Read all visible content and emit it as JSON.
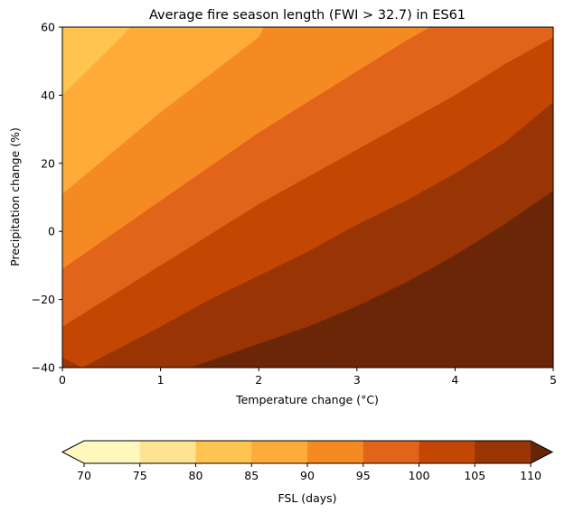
{
  "chart_data": {
    "type": "contourf",
    "title": "Average fire season length (FWI > 32.7) in ES61",
    "xlabel": "Temperature change (°C)",
    "ylabel": "Precipitation change (%)",
    "xlim": [
      0,
      5
    ],
    "ylim": [
      -40,
      60
    ],
    "xticks": [
      0,
      1,
      2,
      3,
      4,
      5
    ],
    "yticks": [
      -40,
      -20,
      0,
      20,
      40,
      60
    ],
    "xtick_labels": [
      "0",
      "1",
      "2",
      "3",
      "4",
      "5"
    ],
    "ytick_labels": [
      "−40",
      "−20",
      "0",
      "20",
      "40",
      "60"
    ],
    "levels": [
      70,
      75,
      80,
      85,
      90,
      95,
      100,
      105,
      110
    ],
    "colorbar": {
      "label": "FSL (days)",
      "tick_labels": [
        "70",
        "75",
        "80",
        "85",
        "90",
        "95",
        "100",
        "105",
        "110"
      ],
      "extend": "both",
      "colors": [
        "#fff7bc",
        "#fee391",
        "#fec44f",
        "#feab3a",
        "#f68a22",
        "#e2641a",
        "#c34603",
        "#993404",
        "#6b2608",
        "#662506"
      ]
    },
    "contour_lines": [
      {
        "level": 80,
        "points": [
          [
            0,
            40
          ],
          [
            0.7,
            60
          ]
        ]
      },
      {
        "level": 85,
        "points": [
          [
            0,
            11
          ],
          [
            0.5,
            23
          ],
          [
            1,
            35
          ],
          [
            1.5,
            46
          ],
          [
            2,
            57
          ],
          [
            2.05,
            60
          ]
        ]
      },
      {
        "level": 90,
        "points": [
          [
            0,
            -11
          ],
          [
            0.5,
            -1
          ],
          [
            1,
            9
          ],
          [
            1.5,
            19
          ],
          [
            2,
            29
          ],
          [
            2.5,
            38
          ],
          [
            3,
            47
          ],
          [
            3.5,
            56
          ],
          [
            3.75,
            60
          ]
        ]
      },
      {
        "level": 95,
        "points": [
          [
            0,
            -28
          ],
          [
            0.5,
            -19
          ],
          [
            1,
            -10
          ],
          [
            1.5,
            -1
          ],
          [
            2,
            8
          ],
          [
            2.5,
            16
          ],
          [
            3,
            24
          ],
          [
            3.5,
            32
          ],
          [
            4,
            40
          ],
          [
            4.5,
            49
          ],
          [
            5,
            57
          ]
        ]
      },
      {
        "level": 100,
        "points": [
          [
            0,
            -37
          ],
          [
            0.2,
            -40
          ],
          [
            1,
            -28
          ],
          [
            1.5,
            -20
          ],
          [
            2,
            -13
          ],
          [
            2.5,
            -6
          ],
          [
            3,
            2
          ],
          [
            3.5,
            9
          ],
          [
            4,
            17
          ],
          [
            4.5,
            26
          ],
          [
            5,
            38
          ]
        ]
      },
      {
        "level": 105,
        "points": [
          [
            1.3,
            -40
          ],
          [
            2,
            -33
          ],
          [
            2.5,
            -28
          ],
          [
            3,
            -22
          ],
          [
            3.5,
            -15
          ],
          [
            4,
            -7
          ],
          [
            4.5,
            2
          ],
          [
            5,
            12
          ]
        ]
      },
      {
        "level": 110,
        "points": [
          [
            2.5,
            -40
          ],
          [
            3,
            -36
          ],
          [
            3.5,
            -31
          ],
          [
            4,
            -26
          ],
          [
            4.5,
            -19
          ],
          [
            5,
            -9
          ]
        ]
      }
    ]
  }
}
